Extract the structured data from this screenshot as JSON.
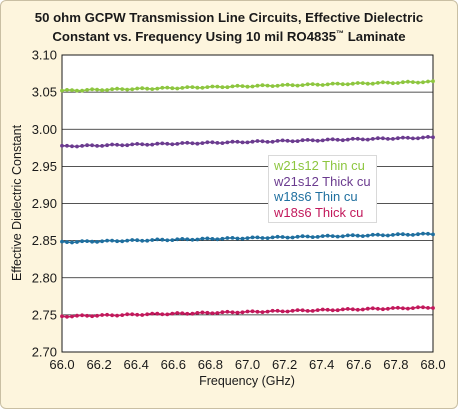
{
  "chart_data": {
    "type": "line",
    "title_line1": "50 ohm GCPW Transmission Line Circuits, Effective Dielectric",
    "title_line2_pre": "Constant vs. Frequency Using 10 mil RO4835",
    "title_line2_tm": "™",
    "title_line2_post": " Laminate",
    "xlabel": "Frequency (GHz)",
    "ylabel": "Effective Dielectric Constant",
    "xlim": [
      66.0,
      68.0
    ],
    "ylim": [
      2.7,
      3.1
    ],
    "xticks": [
      "66.0",
      "66.2",
      "66.4",
      "66.6",
      "66.8",
      "67.0",
      "67.2",
      "67.4",
      "67.6",
      "67.8",
      "68.0"
    ],
    "yticks": [
      "3.10",
      "3.05",
      "3.00",
      "2.95",
      "2.90",
      "2.85",
      "2.80",
      "2.75",
      "2.70"
    ],
    "grid": "horizontal",
    "legend_position": "center-right",
    "series": [
      {
        "name": "w21s12 Thin cu",
        "color": "#8dc63f",
        "start": 3.052,
        "end": 3.064
      },
      {
        "name": "w21s12 Thick cu",
        "color": "#6b3b8f",
        "start": 2.977,
        "end": 2.989
      },
      {
        "name": "w18s6 Thin cu",
        "color": "#1f6f9f",
        "start": 2.848,
        "end": 2.859
      },
      {
        "name": "w18s6 Thick cu",
        "color": "#c2185b",
        "start": 2.748,
        "end": 2.76
      }
    ]
  }
}
